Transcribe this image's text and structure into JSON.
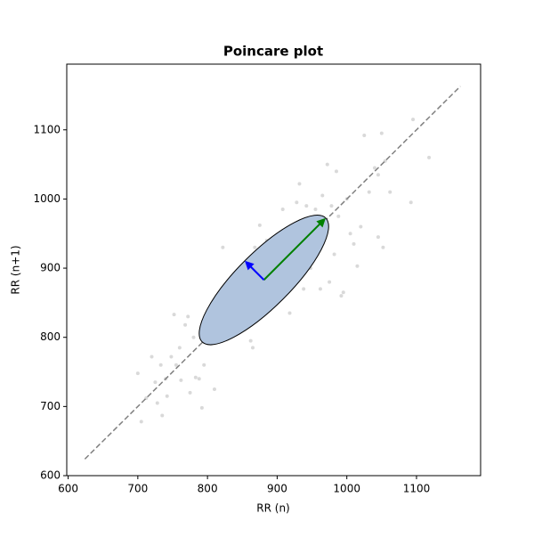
{
  "chart_data": {
    "type": "poincare",
    "title": "Poincare plot",
    "x_label": "RR (n)",
    "y_label": "RR (n+1)",
    "xlim": [
      598,
      1192
    ],
    "ylim": [
      600,
      1195
    ],
    "xticks": [
      600,
      700,
      800,
      900,
      1000,
      1100
    ],
    "yticks": [
      600,
      700,
      800,
      900,
      1000,
      1100
    ],
    "point_color": "#d9d9d9",
    "x": [
      700,
      705,
      712,
      720,
      725,
      728,
      733,
      735,
      740,
      742,
      748,
      752,
      755,
      760,
      762,
      768,
      772,
      775,
      780,
      783,
      788,
      792,
      795,
      800,
      805,
      810,
      812,
      818,
      822,
      825,
      830,
      835,
      840,
      845,
      850,
      855,
      860,
      862,
      865,
      868,
      870,
      872,
      875,
      878,
      882,
      885,
      888,
      890,
      895,
      898,
      902,
      905,
      908,
      912,
      915,
      918,
      922,
      925,
      928,
      932,
      935,
      938,
      942,
      945,
      948,
      952,
      955,
      958,
      962,
      965,
      968,
      972,
      975,
      978,
      982,
      985,
      988,
      992,
      995,
      1000,
      1005,
      1010,
      1015,
      1020,
      1025,
      1032,
      1040,
      1045,
      1050,
      1052,
      1055,
      1045,
      1062,
      1092,
      1095,
      1118
    ],
    "y": [
      748,
      678,
      712,
      772,
      735,
      705,
      760,
      687,
      740,
      715,
      772,
      833,
      760,
      785,
      738,
      818,
      830,
      720,
      800,
      742,
      740,
      698,
      760,
      810,
      790,
      725,
      840,
      808,
      930,
      870,
      880,
      850,
      860,
      895,
      870,
      905,
      840,
      795,
      785,
      930,
      900,
      880,
      962,
      920,
      860,
      940,
      900,
      875,
      865,
      910,
      948,
      890,
      985,
      940,
      880,
      835,
      920,
      960,
      995,
      1022,
      930,
      870,
      990,
      960,
      900,
      930,
      985,
      955,
      870,
      1005,
      950,
      1050,
      880,
      990,
      920,
      1040,
      975,
      860,
      865,
      1000,
      950,
      935,
      903,
      960,
      1092,
      1010,
      1045,
      1035,
      1095,
      930,
      1055,
      945,
      1010,
      995,
      1115,
      1060
    ],
    "identity_line": [
      624,
      1163
    ],
    "ellipse": {
      "center": [
        881,
        883
      ],
      "sd1": 39,
      "sd2": 126,
      "angle": 45,
      "fill": "#b0c4de",
      "edge": "#000000",
      "sd1_color": "#0000ff",
      "sd2_color": "#008000"
    }
  }
}
